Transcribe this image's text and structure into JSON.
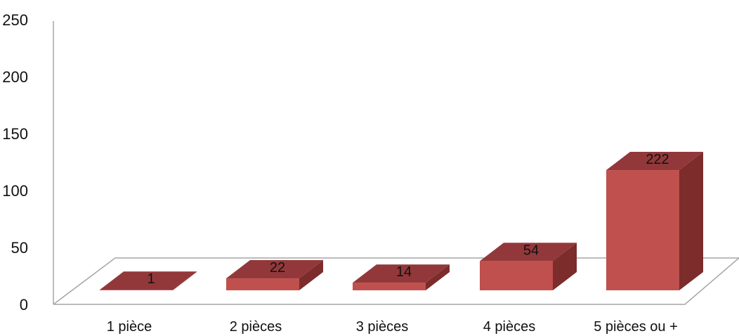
{
  "chart_data": {
    "type": "bar",
    "style": "3d-column",
    "categories": [
      "1 pièce",
      "2 pièces",
      "3 pièces",
      "4 pièces",
      "5 pièces ou +"
    ],
    "values": [
      1,
      22,
      14,
      54,
      222
    ],
    "data_labels": [
      "1",
      "22",
      "14",
      "54",
      "222"
    ],
    "yticks": [
      "0",
      "50",
      "100",
      "150",
      "200",
      "250"
    ],
    "ylim": [
      0,
      250
    ],
    "grid": false,
    "legend": "none",
    "colors": {
      "bar_front": "#c0504d",
      "bar_top": "#93383a",
      "bar_side": "#7b2c2b",
      "axis_lines": "#a6a6a6"
    }
  }
}
